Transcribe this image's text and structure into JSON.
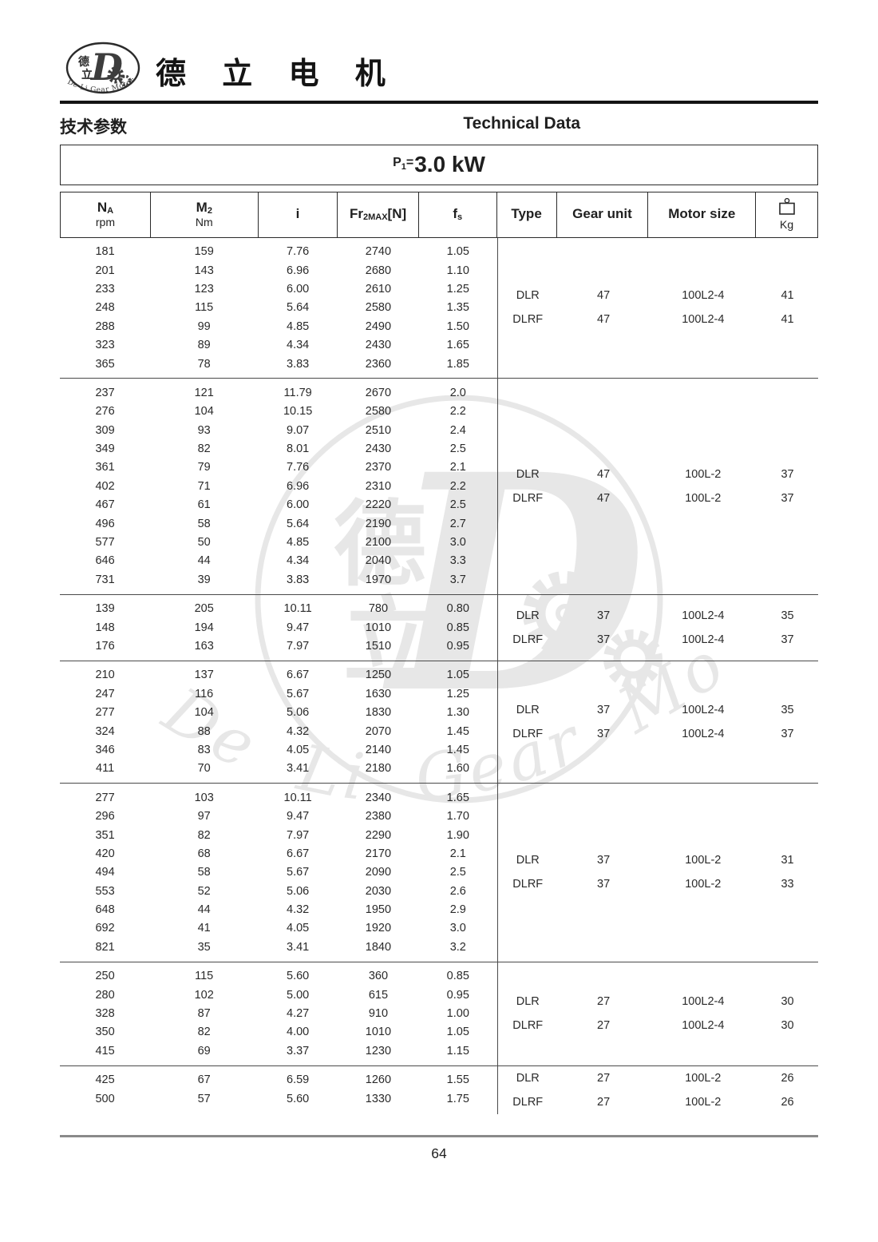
{
  "header": {
    "brand": "德 立 电 机",
    "section_title_zh": "技术参数",
    "section_title_en": "Technical Data",
    "logo": {
      "zh_top": "德",
      "zh_bottom": "立",
      "d_letter": "D",
      "arc_text": "De Li Gear Motor"
    }
  },
  "power": {
    "symbol": "P",
    "sub": "1",
    "eq": "=",
    "value": "3.0 kW"
  },
  "table": {
    "columns": [
      {
        "label": "N",
        "sub": "A",
        "unit": "rpm"
      },
      {
        "label": "M",
        "sub": "2",
        "unit": "Nm"
      },
      {
        "label": "i"
      },
      {
        "label": "Fr",
        "sub": "2MAX",
        "tail": "[N]"
      },
      {
        "label": "f",
        "sub": "s"
      },
      {
        "label": "Type"
      },
      {
        "label": "Gear unit"
      },
      {
        "label": "Motor size"
      },
      {
        "label": "Kg",
        "icon": "weight-icon"
      }
    ],
    "blocks": [
      {
        "rows": [
          [
            "181",
            "159",
            "7.76",
            "2740",
            "1.05"
          ],
          [
            "201",
            "143",
            "6.96",
            "2680",
            "1.10"
          ],
          [
            "233",
            "123",
            "6.00",
            "2610",
            "1.25"
          ],
          [
            "248",
            "115",
            "5.64",
            "2580",
            "1.35"
          ],
          [
            "288",
            "99",
            "4.85",
            "2490",
            "1.50"
          ],
          [
            "323",
            "89",
            "4.34",
            "2430",
            "1.65"
          ],
          [
            "365",
            "78",
            "3.83",
            "2360",
            "1.85"
          ]
        ],
        "right": [
          [
            "DLR",
            "47",
            "100L2-4",
            "41"
          ],
          [
            "DLRF",
            "47",
            "100L2-4",
            "41"
          ]
        ]
      },
      {
        "rows": [
          [
            "237",
            "121",
            "11.79",
            "2670",
            "2.0"
          ],
          [
            "276",
            "104",
            "10.15",
            "2580",
            "2.2"
          ],
          [
            "309",
            "93",
            "9.07",
            "2510",
            "2.4"
          ],
          [
            "349",
            "82",
            "8.01",
            "2430",
            "2.5"
          ],
          [
            "361",
            "79",
            "7.76",
            "2370",
            "2.1"
          ],
          [
            "402",
            "71",
            "6.96",
            "2310",
            "2.2"
          ],
          [
            "467",
            "61",
            "6.00",
            "2220",
            "2.5"
          ],
          [
            "496",
            "58",
            "5.64",
            "2190",
            "2.7"
          ],
          [
            "577",
            "50",
            "4.85",
            "2100",
            "3.0"
          ],
          [
            "646",
            "44",
            "4.34",
            "2040",
            "3.3"
          ],
          [
            "731",
            "39",
            "3.83",
            "1970",
            "3.7"
          ]
        ],
        "right": [
          [
            "DLR",
            "47",
            "100L-2",
            "37"
          ],
          [
            "DLRF",
            "47",
            "100L-2",
            "37"
          ]
        ]
      },
      {
        "rows": [
          [
            "139",
            "205",
            "10.11",
            "780",
            "0.80"
          ],
          [
            "148",
            "194",
            "9.47",
            "1010",
            "0.85"
          ],
          [
            "176",
            "163",
            "7.97",
            "1510",
            "0.95"
          ]
        ],
        "right": [
          [
            "DLR",
            "37",
            "100L2-4",
            "35"
          ],
          [
            "DLRF",
            "37",
            "100L2-4",
            "37"
          ]
        ]
      },
      {
        "rows": [
          [
            "210",
            "137",
            "6.67",
            "1250",
            "1.05"
          ],
          [
            "247",
            "116",
            "5.67",
            "1630",
            "1.25"
          ],
          [
            "277",
            "104",
            "5.06",
            "1830",
            "1.30"
          ],
          [
            "324",
            "88",
            "4.32",
            "2070",
            "1.45"
          ],
          [
            "346",
            "83",
            "4.05",
            "2140",
            "1.45"
          ],
          [
            "411",
            "70",
            "3.41",
            "2180",
            "1.60"
          ]
        ],
        "right": [
          [
            "DLR",
            "37",
            "100L2-4",
            "35"
          ],
          [
            "DLRF",
            "37",
            "100L2-4",
            "37"
          ]
        ]
      },
      {
        "rows": [
          [
            "277",
            "103",
            "10.11",
            "2340",
            "1.65"
          ],
          [
            "296",
            "97",
            "9.47",
            "2380",
            "1.70"
          ],
          [
            "351",
            "82",
            "7.97",
            "2290",
            "1.90"
          ],
          [
            "420",
            "68",
            "6.67",
            "2170",
            "2.1"
          ],
          [
            "494",
            "58",
            "5.67",
            "2090",
            "2.5"
          ],
          [
            "553",
            "52",
            "5.06",
            "2030",
            "2.6"
          ],
          [
            "648",
            "44",
            "4.32",
            "1950",
            "2.9"
          ],
          [
            "692",
            "41",
            "4.05",
            "1920",
            "3.0"
          ],
          [
            "821",
            "35",
            "3.41",
            "1840",
            "3.2"
          ]
        ],
        "right": [
          [
            "DLR",
            "37",
            "100L-2",
            "31"
          ],
          [
            "DLRF",
            "37",
            "100L-2",
            "33"
          ]
        ]
      },
      {
        "rows": [
          [
            "250",
            "115",
            "5.60",
            "360",
            "0.85"
          ],
          [
            "280",
            "102",
            "5.00",
            "615",
            "0.95"
          ],
          [
            "328",
            "87",
            "4.27",
            "910",
            "1.00"
          ],
          [
            "350",
            "82",
            "4.00",
            "1010",
            "1.05"
          ],
          [
            "415",
            "69",
            "3.37",
            "1230",
            "1.15"
          ]
        ],
        "right": [
          [
            "DLR",
            "27",
            "100L2-4",
            "30"
          ],
          [
            "DLRF",
            "27",
            "100L2-4",
            "30"
          ]
        ]
      },
      {
        "rows": [
          [
            "425",
            "67",
            "6.59",
            "1260",
            "1.55"
          ],
          [
            "500",
            "57",
            "5.60",
            "1330",
            "1.75"
          ]
        ],
        "right": [
          [
            "DLR",
            "27",
            "100L-2",
            "26"
          ],
          [
            "DLRF",
            "27",
            "100L-2",
            "26"
          ]
        ]
      }
    ]
  },
  "watermark": {
    "text": "De Li Gear Motor",
    "d_letter": "D",
    "zh_top": "德",
    "zh_bottom": "立"
  },
  "footer": {
    "page": "64"
  }
}
